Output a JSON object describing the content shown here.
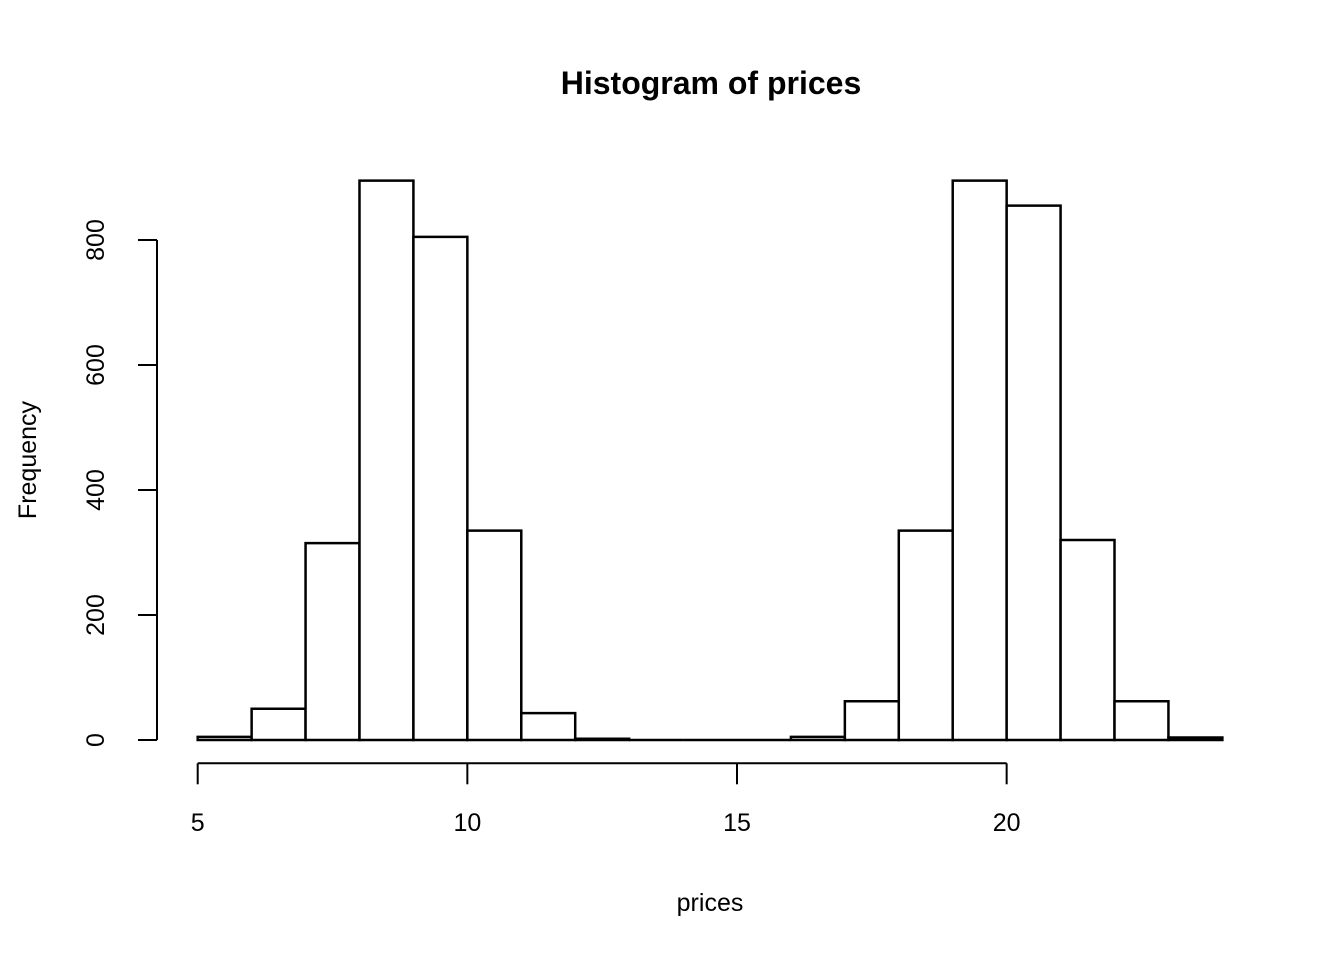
{
  "page": {
    "background": "#ffffff",
    "foreground": "#000000"
  },
  "chart_data": {
    "type": "bar",
    "subtype": "histogram",
    "title": "Histogram of prices",
    "xlabel": "prices",
    "ylabel": "Frequency",
    "bin_edges": [
      5,
      6,
      7,
      8,
      9,
      10,
      11,
      12,
      13,
      14,
      15,
      16,
      17,
      18,
      19,
      20,
      21,
      22,
      23,
      24
    ],
    "counts": [
      5,
      50,
      315,
      895,
      805,
      335,
      43,
      2,
      0,
      0,
      0,
      5,
      62,
      335,
      895,
      855,
      320,
      62,
      4
    ],
    "x_ticks": [
      5,
      10,
      15,
      20
    ],
    "y_ticks": [
      0,
      200,
      400,
      600,
      800
    ],
    "xlim": [
      5,
      24
    ],
    "ylim": [
      0,
      900
    ],
    "x_axis_span": [
      5,
      20
    ],
    "y_axis_span": [
      0,
      800
    ],
    "grid": false,
    "legend": "none",
    "bar_fill": "#ffffff",
    "bar_stroke": "#000000",
    "axis_color": "#000000"
  }
}
